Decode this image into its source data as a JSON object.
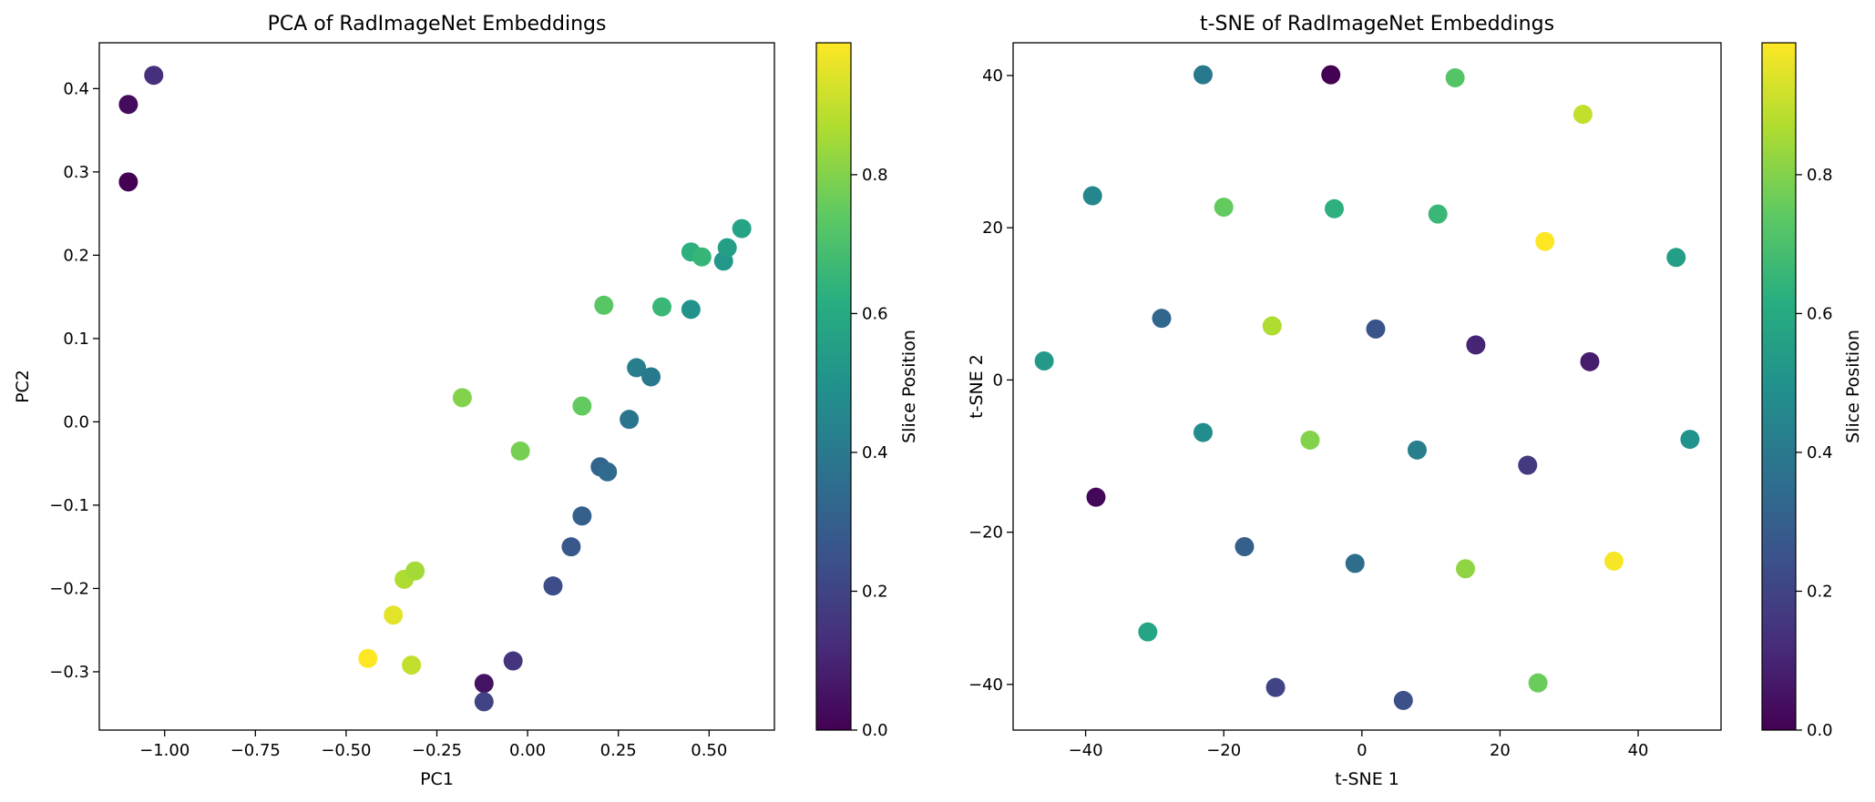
{
  "chart_data": [
    {
      "type": "scatter",
      "title": "PCA of RadImageNet Embeddings",
      "xlabel": "PC1",
      "ylabel": "PC2",
      "xlim": [
        -1.18,
        0.68
      ],
      "ylim": [
        -0.37,
        0.455
      ],
      "xticks": [
        -1.0,
        -0.75,
        -0.5,
        -0.25,
        0.0,
        0.25,
        0.5
      ],
      "xtick_labels": [
        "−1.00",
        "−0.75",
        "−0.50",
        "−0.25",
        "0.00",
        "0.25",
        "0.50"
      ],
      "yticks": [
        -0.3,
        -0.2,
        -0.1,
        0.0,
        0.1,
        0.2,
        0.3,
        0.4
      ],
      "ytick_labels": [
        "−0.3",
        "−0.2",
        "−0.1",
        "0.0",
        "0.1",
        "0.2",
        "0.3",
        "0.4"
      ],
      "colormap": "viridis",
      "colorbar": {
        "label": "Slice Position",
        "range": [
          0.0,
          0.99
        ],
        "ticks": [
          0.0,
          0.2,
          0.4,
          0.6,
          0.8
        ],
        "tick_labels": [
          "0.0",
          "0.2",
          "0.4",
          "0.6",
          "0.8"
        ]
      },
      "points": [
        {
          "x": -1.1,
          "y": 0.381,
          "c": 0.03
        },
        {
          "x": -1.1,
          "y": 0.288,
          "c": 0.0
        },
        {
          "x": -1.03,
          "y": 0.416,
          "c": 0.13
        },
        {
          "x": -0.44,
          "y": -0.284,
          "c": 0.99
        },
        {
          "x": -0.37,
          "y": -0.232,
          "c": 0.95
        },
        {
          "x": -0.34,
          "y": -0.189,
          "c": 0.87
        },
        {
          "x": -0.31,
          "y": -0.179,
          "c": 0.85
        },
        {
          "x": -0.32,
          "y": -0.292,
          "c": 0.9
        },
        {
          "x": -0.18,
          "y": 0.029,
          "c": 0.8
        },
        {
          "x": -0.12,
          "y": -0.314,
          "c": 0.05
        },
        {
          "x": -0.12,
          "y": -0.336,
          "c": 0.2
        },
        {
          "x": -0.04,
          "y": -0.287,
          "c": 0.15
        },
        {
          "x": -0.02,
          "y": -0.035,
          "c": 0.78
        },
        {
          "x": 0.07,
          "y": -0.197,
          "c": 0.23
        },
        {
          "x": 0.12,
          "y": -0.15,
          "c": 0.27
        },
        {
          "x": 0.15,
          "y": -0.113,
          "c": 0.3
        },
        {
          "x": 0.15,
          "y": 0.019,
          "c": 0.75
        },
        {
          "x": 0.2,
          "y": -0.054,
          "c": 0.32
        },
        {
          "x": 0.22,
          "y": -0.06,
          "c": 0.34
        },
        {
          "x": 0.21,
          "y": 0.14,
          "c": 0.73
        },
        {
          "x": 0.28,
          "y": 0.003,
          "c": 0.38
        },
        {
          "x": 0.3,
          "y": 0.065,
          "c": 0.42
        },
        {
          "x": 0.34,
          "y": 0.054,
          "c": 0.4
        },
        {
          "x": 0.37,
          "y": 0.138,
          "c": 0.66
        },
        {
          "x": 0.45,
          "y": 0.135,
          "c": 0.5
        },
        {
          "x": 0.45,
          "y": 0.204,
          "c": 0.63
        },
        {
          "x": 0.48,
          "y": 0.198,
          "c": 0.65
        },
        {
          "x": 0.54,
          "y": 0.193,
          "c": 0.52
        },
        {
          "x": 0.55,
          "y": 0.209,
          "c": 0.55
        },
        {
          "x": 0.59,
          "y": 0.232,
          "c": 0.57
        }
      ]
    },
    {
      "type": "scatter",
      "title": "t-SNE of RadImageNet Embeddings",
      "xlabel": "t-SNE 1",
      "ylabel": "t-SNE 2",
      "xlim": [
        -50.5,
        52.0
      ],
      "ylim": [
        -46.0,
        44.3
      ],
      "xticks": [
        -40,
        -20,
        0,
        20,
        40
      ],
      "xtick_labels": [
        "−40",
        "−20",
        "0",
        "20",
        "40"
      ],
      "yticks": [
        -40,
        -20,
        0,
        20,
        40
      ],
      "ytick_labels": [
        "−40",
        "−20",
        "0",
        "20",
        "40"
      ],
      "colormap": "viridis",
      "colorbar": {
        "label": "Slice Position",
        "range": [
          0.0,
          0.99
        ],
        "ticks": [
          0.0,
          0.2,
          0.4,
          0.6,
          0.8
        ],
        "tick_labels": [
          "0.0",
          "0.2",
          "0.4",
          "0.6",
          "0.8"
        ]
      },
      "points": [
        {
          "x": -23,
          "y": 40.1,
          "c": 0.4
        },
        {
          "x": -4.5,
          "y": 40.1,
          "c": 0.0
        },
        {
          "x": 13.5,
          "y": 39.7,
          "c": 0.72
        },
        {
          "x": 32,
          "y": 34.9,
          "c": 0.9
        },
        {
          "x": -39,
          "y": 24.2,
          "c": 0.45
        },
        {
          "x": -20,
          "y": 22.7,
          "c": 0.75
        },
        {
          "x": -4,
          "y": 22.5,
          "c": 0.63
        },
        {
          "x": 11,
          "y": 21.8,
          "c": 0.66
        },
        {
          "x": 26.5,
          "y": 18.2,
          "c": 0.99
        },
        {
          "x": 45.5,
          "y": 16.1,
          "c": 0.55
        },
        {
          "x": -29,
          "y": 8.1,
          "c": 0.33
        },
        {
          "x": -13,
          "y": 7.1,
          "c": 0.87
        },
        {
          "x": 2,
          "y": 6.7,
          "c": 0.25
        },
        {
          "x": 16.5,
          "y": 4.6,
          "c": 0.1
        },
        {
          "x": 33,
          "y": 2.4,
          "c": 0.08
        },
        {
          "x": -46,
          "y": 2.5,
          "c": 0.53
        },
        {
          "x": -23,
          "y": -6.9,
          "c": 0.48
        },
        {
          "x": -7.5,
          "y": -7.9,
          "c": 0.8
        },
        {
          "x": 8,
          "y": -9.2,
          "c": 0.42
        },
        {
          "x": 24,
          "y": -11.2,
          "c": 0.17
        },
        {
          "x": 47.5,
          "y": -7.8,
          "c": 0.5
        },
        {
          "x": -38.5,
          "y": -15.4,
          "c": 0.02
        },
        {
          "x": -17,
          "y": -21.9,
          "c": 0.3
        },
        {
          "x": -1,
          "y": -24.1,
          "c": 0.35
        },
        {
          "x": 15,
          "y": -24.8,
          "c": 0.82
        },
        {
          "x": 36.5,
          "y": -23.8,
          "c": 0.98
        },
        {
          "x": -31,
          "y": -33.1,
          "c": 0.58
        },
        {
          "x": -12.5,
          "y": -40.4,
          "c": 0.2
        },
        {
          "x": 6,
          "y": -42.1,
          "c": 0.24
        },
        {
          "x": 25.5,
          "y": -39.8,
          "c": 0.76
        }
      ]
    }
  ]
}
